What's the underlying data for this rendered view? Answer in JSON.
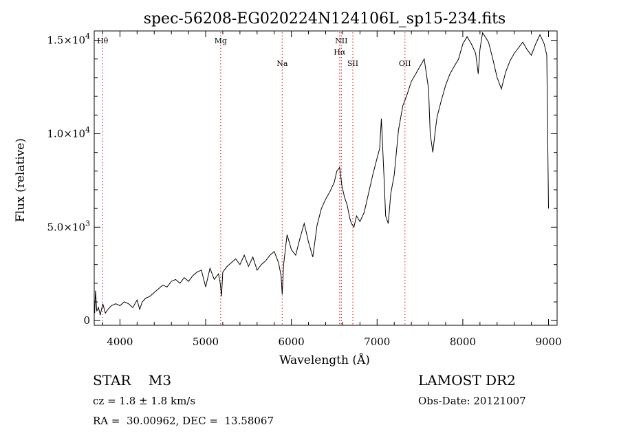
{
  "chart_data": {
    "type": "line",
    "title": "spec-56208-EG020224N124106L_sp15-234.fits",
    "xlabel": "Wavelength (Å)",
    "ylabel": "Flux (relative)",
    "xlim": [
      3700,
      9100
    ],
    "ylim": [
      -250,
      15500
    ],
    "x_ticks": [
      4000,
      5000,
      6000,
      7000,
      8000,
      9000
    ],
    "y_ticks": [
      {
        "value": 0,
        "label": "0"
      },
      {
        "value": 5000,
        "mant": "5.0",
        "exp": "3"
      },
      {
        "value": 10000,
        "mant": "1.0",
        "exp": "4"
      },
      {
        "value": 15000,
        "mant": "1.5",
        "exp": "4"
      }
    ],
    "spectral_lines": [
      {
        "label": "Hθ",
        "x": 3798,
        "row": 0
      },
      {
        "label": "Mg",
        "x": 5175,
        "row": 0
      },
      {
        "label": "Na",
        "x": 5893,
        "row": 1
      },
      {
        "label": "NII",
        "x": 6583,
        "row": 0
      },
      {
        "label": "Hα",
        "x": 6563,
        "row": 0.5
      },
      {
        "label": "SII",
        "x": 6717,
        "row": 1
      },
      {
        "label": "OII",
        "x": 7325,
        "row": 1
      }
    ],
    "line_color": "#e03030",
    "series_color": "#000000",
    "series": [
      {
        "x": [
          3705,
          3715,
          3730,
          3750,
          3770,
          3800,
          3830,
          3860,
          3900,
          3950,
          4000,
          4050,
          4100,
          4150,
          4200,
          4230,
          4260,
          4300,
          4350,
          4400,
          4450,
          4500,
          4550,
          4600,
          4650,
          4700,
          4750,
          4800,
          4850,
          4900,
          4950,
          5000,
          5050,
          5100,
          5150,
          5170,
          5185,
          5200,
          5250,
          5300,
          5350,
          5400,
          5450,
          5500,
          5550,
          5600,
          5650,
          5700,
          5750,
          5800,
          5850,
          5880,
          5893,
          5910,
          5950,
          6000,
          6050,
          6100,
          6150,
          6200,
          6250,
          6300,
          6350,
          6400,
          6450,
          6500,
          6530,
          6563,
          6590,
          6620,
          6650,
          6680,
          6700,
          6730,
          6760,
          6800,
          6850,
          6900,
          6950,
          7000,
          7030,
          7050,
          7080,
          7100,
          7130,
          7160,
          7200,
          7250,
          7300,
          7350,
          7400,
          7450,
          7500,
          7550,
          7600,
          7620,
          7650,
          7680,
          7700,
          7750,
          7800,
          7850,
          7900,
          7950,
          8000,
          8050,
          8100,
          8150,
          8180,
          8200,
          8230,
          8260,
          8300,
          8350,
          8400,
          8450,
          8500,
          8550,
          8600,
          8650,
          8700,
          8750,
          8800,
          8850,
          8900,
          8950,
          8980,
          9000
        ],
        "y": [
          400,
          1600,
          500,
          700,
          300,
          900,
          400,
          600,
          800,
          900,
          800,
          1000,
          900,
          700,
          1100,
          600,
          1000,
          1200,
          1300,
          1500,
          1700,
          1900,
          1800,
          2100,
          2200,
          2000,
          2300,
          2100,
          2400,
          2600,
          2700,
          1800,
          2800,
          2200,
          2500,
          2000,
          1300,
          2600,
          2900,
          3100,
          3300,
          3000,
          3500,
          2900,
          3400,
          2700,
          3000,
          3200,
          3500,
          3700,
          3100,
          2400,
          1400,
          3000,
          4600,
          3800,
          3500,
          4400,
          5200,
          4200,
          3400,
          5100,
          6000,
          6500,
          6900,
          7400,
          8000,
          8200,
          7200,
          6600,
          6200,
          5500,
          5200,
          5000,
          5600,
          5300,
          5800,
          6800,
          7800,
          8700,
          9200,
          10800,
          7800,
          5600,
          5200,
          6800,
          7800,
          10200,
          11500,
          12100,
          12800,
          13200,
          13600,
          14000,
          12400,
          10000,
          9000,
          10200,
          10900,
          11800,
          12600,
          13200,
          13600,
          14000,
          14800,
          15200,
          14800,
          14300,
          13200,
          14500,
          15400,
          15200,
          14900,
          14000,
          13000,
          12400,
          13300,
          13900,
          14300,
          14600,
          14900,
          14500,
          14200,
          14800,
          15300,
          14800,
          14200,
          6000
        ]
      }
    ]
  },
  "info": {
    "object": "STAR    M3",
    "cz": "cz = 1.8 ± 1.8 km/s",
    "radec": "RA =  30.00962, DEC =  13.58067",
    "survey": "LAMOST DR2",
    "obsdate": "Obs-Date: 20121007"
  }
}
